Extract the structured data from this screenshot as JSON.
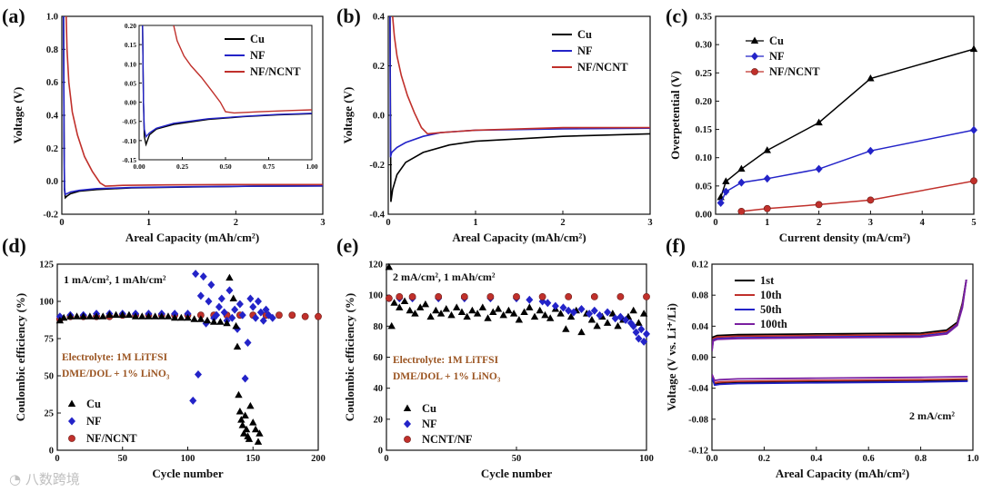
{
  "watermark": "八数跨境",
  "colors": {
    "cu": "#000000",
    "nf": "#2323c8",
    "ncnt": "#c0302b",
    "purple": "#7a1fa0"
  },
  "chart_data": [
    {
      "id": "a",
      "label": "(a)",
      "type": "line",
      "xlabel": "Areal Capacity (mAh/cm²)",
      "ylabel": "Voltage (V)",
      "xlim": [
        0,
        3
      ],
      "ylim": [
        -0.2,
        1.0
      ],
      "xticks": [
        "0",
        "1",
        "2",
        "3"
      ],
      "yticks": [
        "-0.2",
        "0.0",
        "0.2",
        "0.4",
        "0.6",
        "0.8",
        "1.0"
      ],
      "series": [
        {
          "name": "Cu",
          "key": "cu",
          "x": [
            0.02,
            0.025,
            0.03,
            0.04,
            0.06,
            0.1,
            0.2,
            0.4,
            0.8,
            1.5,
            2.2,
            3.0
          ],
          "y": [
            1.0,
            0.3,
            -0.05,
            -0.1,
            -0.09,
            -0.075,
            -0.06,
            -0.05,
            -0.04,
            -0.035,
            -0.03,
            -0.028
          ]
        },
        {
          "name": "NF",
          "key": "nf",
          "x": [
            0.02,
            0.025,
            0.03,
            0.04,
            0.06,
            0.1,
            0.2,
            0.4,
            0.8,
            1.5,
            2.2,
            3.0
          ],
          "y": [
            1.0,
            0.3,
            -0.04,
            -0.08,
            -0.075,
            -0.065,
            -0.055,
            -0.045,
            -0.038,
            -0.033,
            -0.03,
            -0.028
          ]
        },
        {
          "name": "NF/NCNT",
          "key": "ncnt",
          "x": [
            0.05,
            0.06,
            0.08,
            0.12,
            0.18,
            0.26,
            0.35,
            0.44,
            0.5,
            0.7,
            1.2,
            2.0,
            3.0
          ],
          "y": [
            1.0,
            0.8,
            0.6,
            0.42,
            0.28,
            0.15,
            0.06,
            -0.01,
            -0.03,
            -0.025,
            -0.022,
            -0.02,
            -0.02
          ]
        }
      ],
      "inset": {
        "xlim": [
          0,
          1
        ],
        "ylim": [
          -0.15,
          0.2
        ],
        "xticks": [
          "0.00",
          "0.25",
          "0.50",
          "0.75",
          "1.00"
        ],
        "yticks": [
          "-0.15",
          "-0.10",
          "-0.05",
          "0.00",
          "0.05",
          "0.10",
          "0.15",
          "0.20"
        ]
      }
    },
    {
      "id": "b",
      "label": "(b)",
      "type": "line",
      "xlabel": "Areal Capacity (mAh/cm²)",
      "ylabel": "Voltage (V)",
      "xlim": [
        0,
        3
      ],
      "ylim": [
        -0.4,
        0.4
      ],
      "xticks": [
        "0",
        "1",
        "2",
        "3"
      ],
      "yticks": [
        "-0.4",
        "-0.2",
        "0.0",
        "0.2",
        "0.4"
      ],
      "series": [
        {
          "name": "Cu",
          "key": "cu",
          "x": [
            0.02,
            0.03,
            0.05,
            0.1,
            0.2,
            0.4,
            0.7,
            1.0,
            1.5,
            2.0,
            2.5,
            3.0
          ],
          "y": [
            0.4,
            -0.35,
            -0.3,
            -0.24,
            -0.19,
            -0.15,
            -0.12,
            -0.105,
            -0.095,
            -0.085,
            -0.08,
            -0.075
          ]
        },
        {
          "name": "NF",
          "key": "nf",
          "x": [
            0.02,
            0.025,
            0.04,
            0.1,
            0.2,
            0.4,
            0.6,
            1.0,
            2.0,
            3.0
          ],
          "y": [
            0.4,
            -0.17,
            -0.15,
            -0.13,
            -0.11,
            -0.085,
            -0.07,
            -0.06,
            -0.055,
            -0.052
          ]
        },
        {
          "name": "NF/NCNT",
          "key": "ncnt",
          "x": [
            0.05,
            0.07,
            0.1,
            0.15,
            0.22,
            0.3,
            0.38,
            0.45,
            0.6,
            1.0,
            2.0,
            3.0
          ],
          "y": [
            0.4,
            0.32,
            0.24,
            0.16,
            0.08,
            0.01,
            -0.05,
            -0.075,
            -0.07,
            -0.06,
            -0.05,
            -0.05
          ]
        }
      ]
    },
    {
      "id": "c",
      "label": "(c)",
      "type": "line",
      "xlabel": "Current density (mA/cm²)",
      "ylabel": "Overpetential (V)",
      "xlim": [
        0,
        5
      ],
      "ylim": [
        0,
        0.35
      ],
      "xticks": [
        "0",
        "1",
        "2",
        "3",
        "4",
        "5"
      ],
      "yticks": [
        "0.00",
        "0.05",
        "0.10",
        "0.15",
        "0.20",
        "0.25",
        "0.30",
        "0.35"
      ],
      "series": [
        {
          "name": "Cu",
          "key": "cu",
          "marker": "triangle",
          "x": [
            0.1,
            0.2,
            0.5,
            1,
            2,
            3,
            5
          ],
          "y": [
            0.03,
            0.058,
            0.08,
            0.113,
            0.162,
            0.24,
            0.292
          ]
        },
        {
          "name": "NF",
          "key": "nf",
          "marker": "diamond",
          "x": [
            0.1,
            0.2,
            0.5,
            1,
            2,
            3,
            5
          ],
          "y": [
            0.02,
            0.04,
            0.056,
            0.063,
            0.08,
            0.112,
            0.149
          ]
        },
        {
          "name": "NF/NCNT",
          "key": "ncnt",
          "marker": "circle",
          "x": [
            0.5,
            1,
            2,
            3,
            5
          ],
          "y": [
            0.005,
            0.01,
            0.017,
            0.025,
            0.059
          ]
        }
      ]
    },
    {
      "id": "d",
      "label": "(d)",
      "type": "scatter",
      "xlabel": "Cycle number",
      "ylabel": "Coulombic efficiency (%)",
      "xlim": [
        0,
        200
      ],
      "ylim": [
        0,
        135
      ],
      "xticks": [
        "0",
        "50",
        "100",
        "150",
        "200"
      ],
      "yticks": [
        "0",
        "25",
        "50",
        "75",
        "100",
        "125"
      ],
      "annotation": "1 mA/cm², 1 mAh/cm²",
      "electrolyte": [
        "Electrolyte: 1M LiTFSI",
        "DME/DOL + 1% LiNO₃"
      ],
      "series": [
        {
          "name": "Cu",
          "key": "cu",
          "marker": "triangle",
          "x": [
            2,
            5,
            10,
            15,
            20,
            25,
            30,
            35,
            40,
            45,
            50,
            55,
            60,
            65,
            70,
            75,
            80,
            85,
            90,
            95,
            100,
            105,
            110,
            115,
            120,
            125,
            130,
            132,
            135,
            137,
            138,
            139,
            140,
            141,
            142,
            143,
            144,
            145,
            146,
            147,
            148,
            150,
            152,
            154,
            155
          ],
          "y": [
            94,
            96,
            97,
            97,
            97,
            97,
            97,
            97,
            98,
            98,
            98,
            98,
            97,
            97,
            97,
            97,
            97,
            97,
            96,
            96,
            96,
            95,
            95,
            94,
            93,
            93,
            92,
            125,
            110,
            90,
            75,
            40,
            28,
            22,
            18,
            12,
            25,
            15,
            10,
            8,
            32,
            20,
            15,
            6,
            12
          ]
        },
        {
          "name": "NF",
          "key": "nf",
          "marker": "diamond",
          "x": [
            2,
            10,
            20,
            30,
            40,
            50,
            60,
            70,
            80,
            90,
            100,
            104,
            106,
            108,
            110,
            112,
            114,
            116,
            118,
            120,
            122,
            124,
            126,
            128,
            130,
            132,
            134,
            136,
            138,
            140,
            142,
            144,
            146,
            148,
            150,
            152,
            154,
            156,
            158,
            160,
            162,
            165
          ],
          "y": [
            97,
            98,
            98,
            99,
            99,
            99,
            99,
            99,
            99,
            99,
            99,
            36,
            128,
            55,
            112,
            126,
            92,
            108,
            120,
            96,
            98,
            104,
            110,
            100,
            94,
            116,
            96,
            102,
            88,
            106,
            98,
            52,
            78,
            110,
            104,
            96,
            108,
            100,
            94,
            102,
            98,
            96
          ]
        },
        {
          "name": "NF/NCNT",
          "key": "ncnt",
          "marker": "circle",
          "x": [
            2,
            10,
            20,
            30,
            40,
            50,
            60,
            70,
            80,
            90,
            100,
            110,
            120,
            130,
            140,
            150,
            160,
            170,
            180,
            190,
            200
          ],
          "y": [
            95,
            97,
            97,
            97,
            97,
            98,
            98,
            98,
            98,
            98,
            98,
            98,
            98,
            98,
            98,
            98,
            98,
            98,
            98,
            97,
            97
          ]
        }
      ]
    },
    {
      "id": "e",
      "label": "(e)",
      "type": "scatter",
      "xlabel": "Cycle number",
      "ylabel": "Coulombic efficiency (%)",
      "xlim": [
        0,
        100
      ],
      "ylim": [
        0,
        120
      ],
      "xticks": [
        "0",
        "50",
        "100"
      ],
      "yticks": [
        "0",
        "20",
        "40",
        "60",
        "80",
        "100",
        "120"
      ],
      "annotation": "2 mA/cm², 1 mAh/cm²",
      "electrolyte": [
        "Electrolyte: 1M LiTFSI",
        "DME/DOL + 1% LiNO₃"
      ],
      "series": [
        {
          "name": "Cu",
          "key": "cu",
          "marker": "triangle",
          "x": [
            1,
            2,
            3,
            5,
            7,
            9,
            11,
            13,
            15,
            17,
            19,
            21,
            23,
            25,
            27,
            29,
            31,
            33,
            35,
            37,
            39,
            41,
            43,
            45,
            47,
            49,
            51,
            53,
            55,
            57,
            59,
            61,
            63,
            65,
            67,
            69,
            71,
            73,
            75,
            77,
            79,
            81,
            83,
            85,
            87,
            89,
            91,
            93,
            95,
            97,
            99
          ],
          "y": [
            118,
            80,
            95,
            92,
            96,
            90,
            88,
            92,
            94,
            86,
            90,
            88,
            91,
            87,
            92,
            89,
            86,
            90,
            88,
            92,
            85,
            89,
            91,
            87,
            90,
            88,
            84,
            89,
            92,
            86,
            90,
            87,
            85,
            91,
            88,
            78,
            86,
            90,
            76,
            88,
            84,
            80,
            86,
            82,
            88,
            80,
            84,
            86,
            90,
            82,
            88
          ]
        },
        {
          "name": "NF",
          "key": "nf",
          "marker": "diamond",
          "x": [
            1,
            5,
            10,
            20,
            30,
            40,
            50,
            55,
            60,
            62,
            65,
            68,
            70,
            72,
            75,
            78,
            80,
            82,
            85,
            88,
            90,
            92,
            94,
            95,
            96,
            97,
            98,
            99,
            100
          ],
          "y": [
            98,
            98,
            98,
            98,
            98,
            98,
            98,
            97,
            96,
            95,
            93,
            92,
            90,
            89,
            91,
            88,
            90,
            87,
            89,
            85,
            86,
            84,
            82,
            80,
            76,
            72,
            78,
            70,
            75
          ]
        },
        {
          "name": "NCNT/NF",
          "key": "ncnt",
          "marker": "circle",
          "x": [
            1,
            5,
            10,
            20,
            30,
            40,
            50,
            60,
            70,
            80,
            90,
            100
          ],
          "y": [
            98,
            99,
            99,
            99,
            99,
            99,
            99,
            99,
            99,
            99,
            99,
            99
          ]
        }
      ]
    },
    {
      "id": "f",
      "label": "(f)",
      "type": "line",
      "xlabel": "Areal Capacity (mAh/cm²)",
      "ylabel": "Voltage (V vs. Li⁺/Li)",
      "xlim": [
        0,
        1
      ],
      "ylim": [
        -0.12,
        0.12
      ],
      "xticks": [
        "0.0",
        "0.2",
        "0.4",
        "0.6",
        "0.8",
        "1.0"
      ],
      "yticks": [
        "-0.12",
        "-0.08",
        "-0.04",
        "0.00",
        "0.04",
        "0.08",
        "0.12"
      ],
      "annotation": "2 mA/cm²",
      "series": [
        {
          "name": "1st",
          "key": "cu",
          "x": [
            0,
            0.005,
            0.02,
            0.1,
            0.4,
            0.8,
            0.9,
            0.94,
            0.96,
            0.975
          ],
          "y": [
            0.01,
            0.026,
            0.028,
            0.029,
            0.03,
            0.031,
            0.035,
            0.045,
            0.07,
            0.1
          ],
          "x2": [
            0,
            0.01,
            0.03,
            0.1,
            0.4,
            0.8,
            0.98
          ],
          "y2": [
            -0.025,
            -0.035,
            -0.034,
            -0.033,
            -0.032,
            -0.031,
            -0.03
          ]
        },
        {
          "name": "10th",
          "key": "ncnt",
          "x": [
            0,
            0.005,
            0.02,
            0.1,
            0.4,
            0.8,
            0.9,
            0.94,
            0.96,
            0.975
          ],
          "y": [
            0.012,
            0.024,
            0.026,
            0.027,
            0.028,
            0.029,
            0.033,
            0.043,
            0.068,
            0.1
          ],
          "x2": [
            0,
            0.01,
            0.03,
            0.1,
            0.4,
            0.8,
            0.98
          ],
          "y2": [
            -0.024,
            -0.033,
            -0.032,
            -0.031,
            -0.03,
            -0.029,
            -0.028
          ]
        },
        {
          "name": "50th",
          "key": "nf",
          "x": [
            0,
            0.005,
            0.02,
            0.1,
            0.4,
            0.8,
            0.9,
            0.94,
            0.96,
            0.975
          ],
          "y": [
            0.01,
            0.022,
            0.024,
            0.025,
            0.026,
            0.027,
            0.031,
            0.042,
            0.066,
            0.1
          ],
          "x2": [
            0,
            0.01,
            0.03,
            0.1,
            0.4,
            0.8,
            0.98
          ],
          "y2": [
            -0.026,
            -0.036,
            -0.035,
            -0.034,
            -0.033,
            -0.032,
            -0.031
          ]
        },
        {
          "name": "100th",
          "key": "purple",
          "x": [
            0,
            0.005,
            0.02,
            0.1,
            0.4,
            0.8,
            0.9,
            0.94,
            0.96,
            0.975
          ],
          "y": [
            0.008,
            0.021,
            0.023,
            0.024,
            0.025,
            0.026,
            0.03,
            0.041,
            0.064,
            0.1
          ],
          "x2": [
            0,
            0.01,
            0.03,
            0.1,
            0.4,
            0.8,
            0.98
          ],
          "y2": [
            -0.022,
            -0.03,
            -0.029,
            -0.028,
            -0.027,
            -0.026,
            -0.025
          ]
        }
      ]
    }
  ]
}
